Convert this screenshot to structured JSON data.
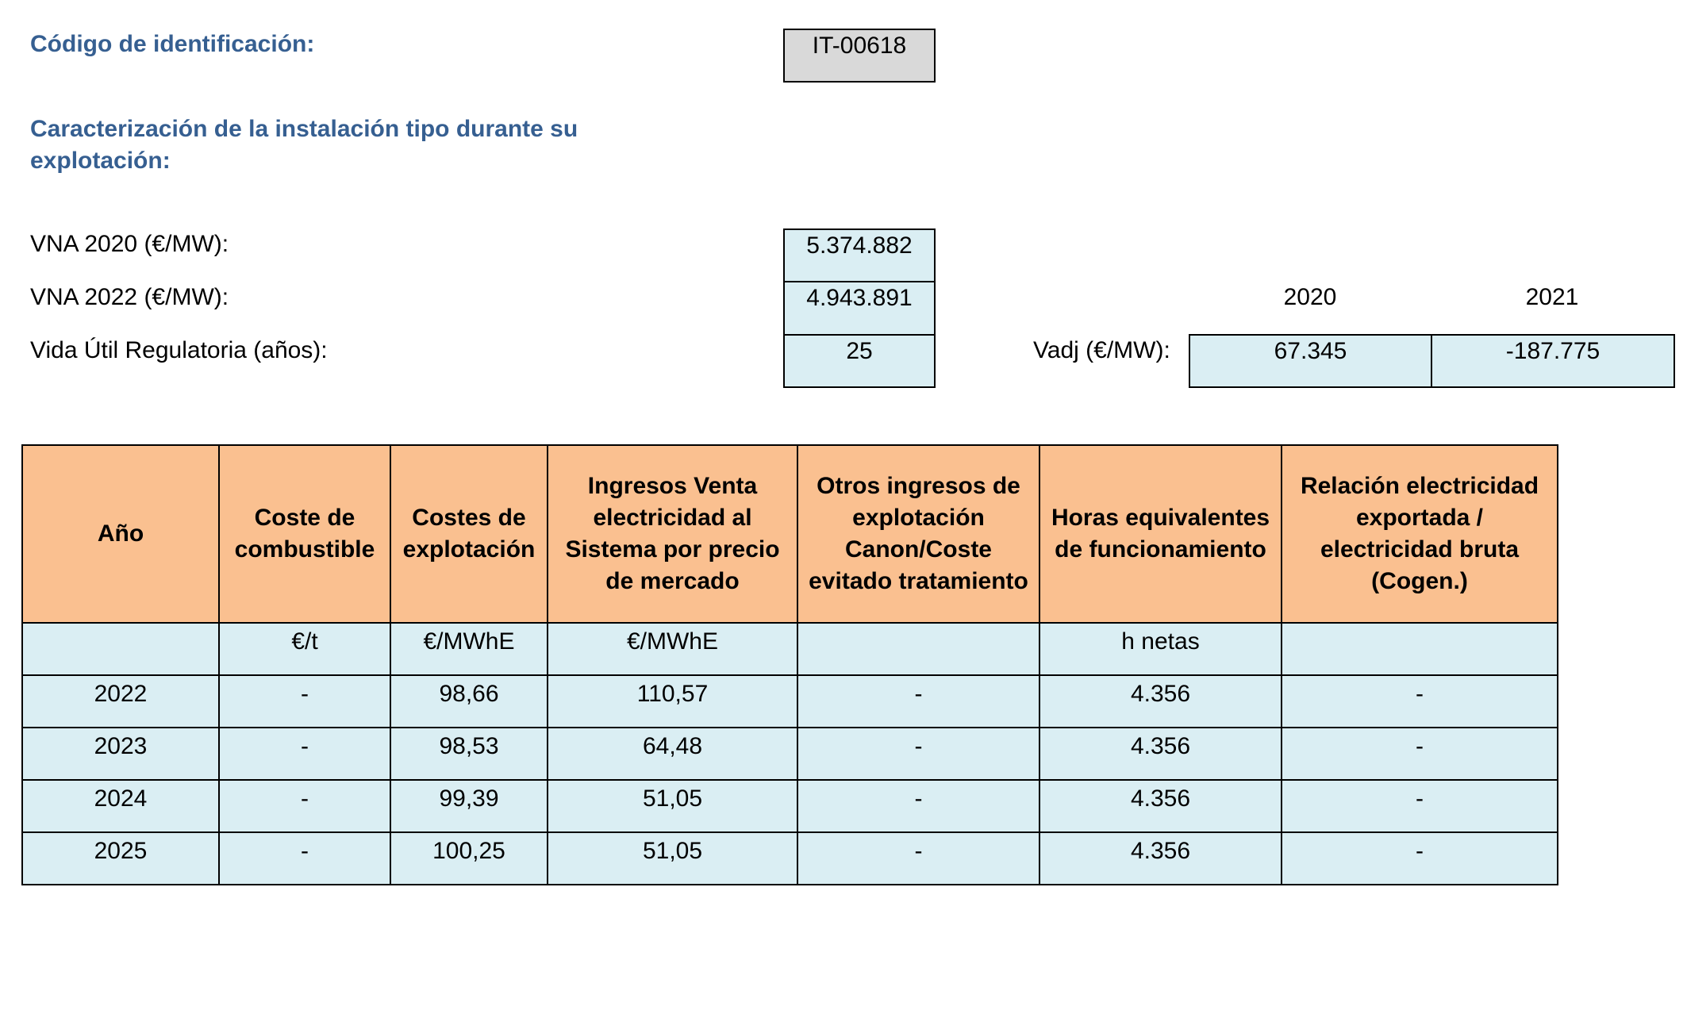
{
  "codigo": {
    "label": "Código de identificación:",
    "value": "IT-00618"
  },
  "caracterizacion": {
    "heading": "Caracterización de la instalación tipo durante su explotación:"
  },
  "params": {
    "vna2020": {
      "label": "VNA 2020 (€/MW):",
      "value": "5.374.882"
    },
    "vna2022": {
      "label": "VNA 2022 (€/MW):",
      "value": "4.943.891"
    },
    "vida": {
      "label": "Vida Útil Regulatoria (años):",
      "value": "25"
    }
  },
  "vadj": {
    "label": "Vadj (€/MW):",
    "years": [
      "2020",
      "2021"
    ],
    "values": [
      "67.345",
      "-187.775"
    ]
  },
  "table": {
    "headers": [
      "Año",
      "Coste de combustible",
      "Costes de explotación",
      "Ingresos Venta electricidad al Sistema por precio de mercado",
      "Otros ingresos de explotación Canon/Coste evitado tratamiento",
      "Horas equivalentes de funcionamiento",
      "Relación electricidad exportada / electricidad bruta (Cogen.)"
    ],
    "units": [
      "",
      "€/t",
      "€/MWhE",
      "€/MWhE",
      "",
      "h netas",
      ""
    ],
    "rows": [
      [
        "2022",
        "-",
        "98,66",
        "110,57",
        "-",
        "4.356",
        "-"
      ],
      [
        "2023",
        "-",
        "98,53",
        "64,48",
        "-",
        "4.356",
        "-"
      ],
      [
        "2024",
        "-",
        "99,39",
        "51,05",
        "-",
        "4.356",
        "-"
      ],
      [
        "2025",
        "-",
        "100,25",
        "51,05",
        "-",
        "4.356",
        "-"
      ]
    ]
  }
}
